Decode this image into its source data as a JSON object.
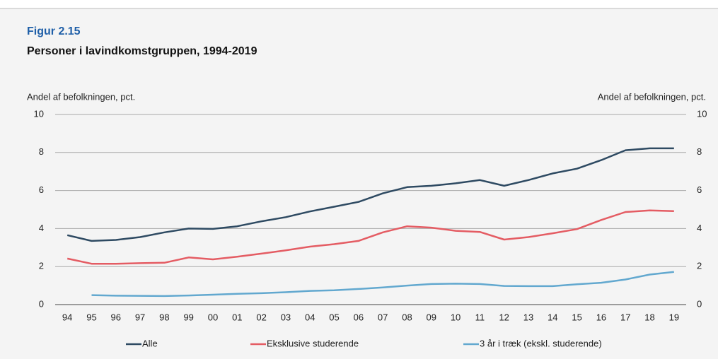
{
  "chart_data": {
    "type": "line",
    "figure_label": "Figur 2.15",
    "title": "Personer i lavindkomstgruppen, 1994-2019",
    "y_label": "Andel af befolkningen, pct.",
    "y2_label": "Andel af befolkningen, pct.",
    "categories": [
      "94",
      "95",
      "96",
      "97",
      "98",
      "99",
      "00",
      "01",
      "02",
      "03",
      "04",
      "05",
      "06",
      "07",
      "08",
      "09",
      "10",
      "11",
      "12",
      "13",
      "14",
      "15",
      "16",
      "17",
      "18",
      "19"
    ],
    "series": [
      {
        "name": "Alle",
        "color": "#2e4a62",
        "values": [
          3.65,
          3.35,
          3.4,
          3.55,
          3.8,
          4.0,
          3.98,
          4.12,
          4.38,
          4.6,
          4.9,
          5.15,
          5.4,
          5.85,
          6.18,
          6.25,
          6.38,
          6.55,
          6.25,
          6.55,
          6.9,
          7.15,
          7.6,
          8.12,
          8.22,
          8.22
        ]
      },
      {
        "name": "Eksklusive studerende",
        "color": "#e45c63",
        "values": [
          2.42,
          2.15,
          2.15,
          2.18,
          2.2,
          2.48,
          2.38,
          2.52,
          2.68,
          2.85,
          3.05,
          3.18,
          3.35,
          3.8,
          4.12,
          4.05,
          3.88,
          3.82,
          3.42,
          3.55,
          3.75,
          3.97,
          4.45,
          4.87,
          4.95,
          4.92
        ]
      },
      {
        "name": "3 år i træk (ekskl. studerende)",
        "color": "#62a8cf",
        "values": [
          null,
          0.5,
          0.47,
          0.46,
          0.45,
          0.48,
          0.52,
          0.57,
          0.6,
          0.65,
          0.72,
          0.75,
          0.82,
          0.9,
          1.0,
          1.08,
          1.1,
          1.08,
          0.98,
          0.97,
          0.97,
          1.07,
          1.15,
          1.32,
          1.58,
          1.72
        ]
      }
    ],
    "ylim": [
      0,
      10
    ],
    "yticks": [
      0,
      2,
      4,
      6,
      8,
      10
    ],
    "y2lim": [
      0,
      10
    ],
    "y2ticks": [
      0,
      2,
      4,
      6,
      8,
      10
    ],
    "grid": true
  }
}
